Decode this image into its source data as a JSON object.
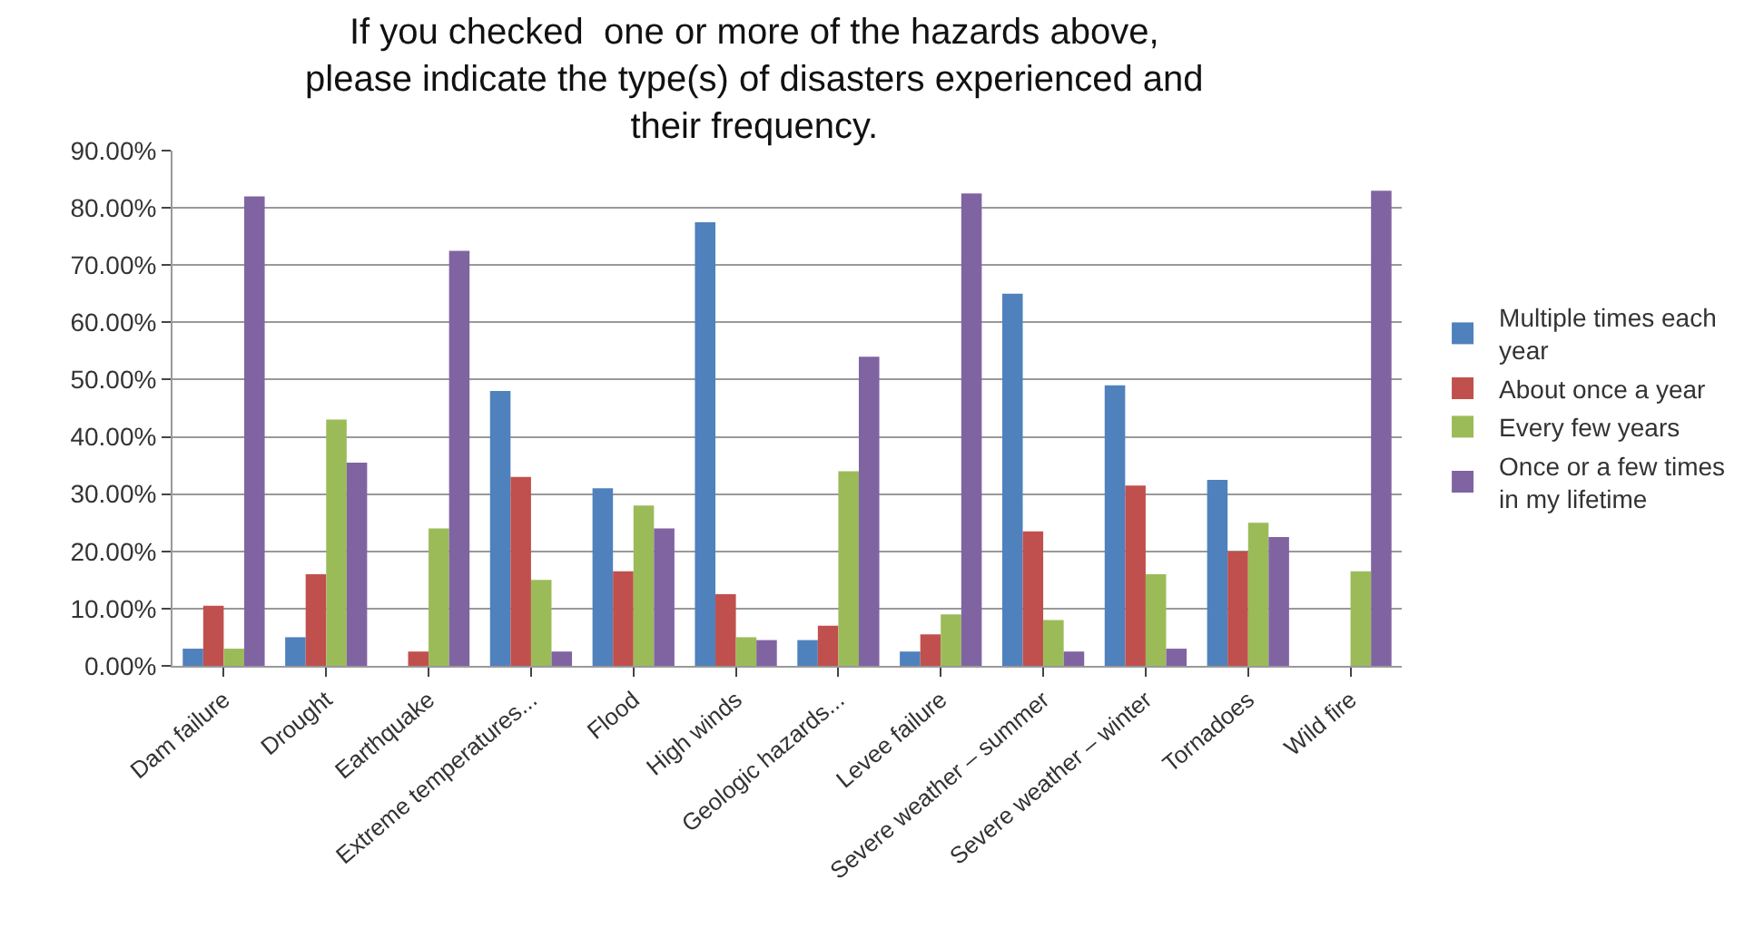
{
  "chart_data": {
    "type": "bar",
    "title": "If you checked  one or more of the hazards above,\nplease indicate the type(s) of disasters experienced and\ntheir frequency.",
    "categories": [
      "Dam failure",
      "Drought",
      "Earthquake",
      "Extreme temperatures...",
      "Flood",
      "High winds",
      "Geologic hazards...",
      "Levee failure",
      "Severe weather – summer",
      "Severe weather – winter",
      "Tornadoes",
      "Wild fire"
    ],
    "series": [
      {
        "name": "Multiple times each year",
        "color": "#4f81bd",
        "values": [
          3,
          5,
          0,
          48,
          31,
          77.5,
          4.5,
          2.5,
          65,
          49,
          32.5,
          0
        ]
      },
      {
        "name": "About once a year",
        "color": "#c0504d",
        "values": [
          10.5,
          16,
          2.5,
          33,
          16.5,
          12.5,
          7,
          5.5,
          23.5,
          31.5,
          20,
          0
        ]
      },
      {
        "name": "Every few years",
        "color": "#9bbb59",
        "values": [
          3,
          43,
          24,
          15,
          28,
          5,
          34,
          9,
          8,
          16,
          25,
          16.5
        ]
      },
      {
        "name": "Once or a few times in my lifetime",
        "color": "#8064a2",
        "values": [
          82,
          35.5,
          72.5,
          2.5,
          24,
          4.5,
          54,
          82.5,
          2.5,
          3,
          22.5,
          83
        ]
      }
    ],
    "ylim": [
      0,
      90
    ],
    "yticks": [
      {
        "value": 0,
        "label": "0.00%"
      },
      {
        "value": 10,
        "label": "10.00%"
      },
      {
        "value": 20,
        "label": "20.00%"
      },
      {
        "value": 30,
        "label": "30.00%"
      },
      {
        "value": 40,
        "label": "40.00%"
      },
      {
        "value": 50,
        "label": "50.00%"
      },
      {
        "value": 60,
        "label": "60.00%"
      },
      {
        "value": 70,
        "label": "70.00%"
      },
      {
        "value": 80,
        "label": "80.00%"
      },
      {
        "value": 90,
        "label": "90.00%"
      }
    ],
    "grid": "y",
    "legend": "right"
  }
}
